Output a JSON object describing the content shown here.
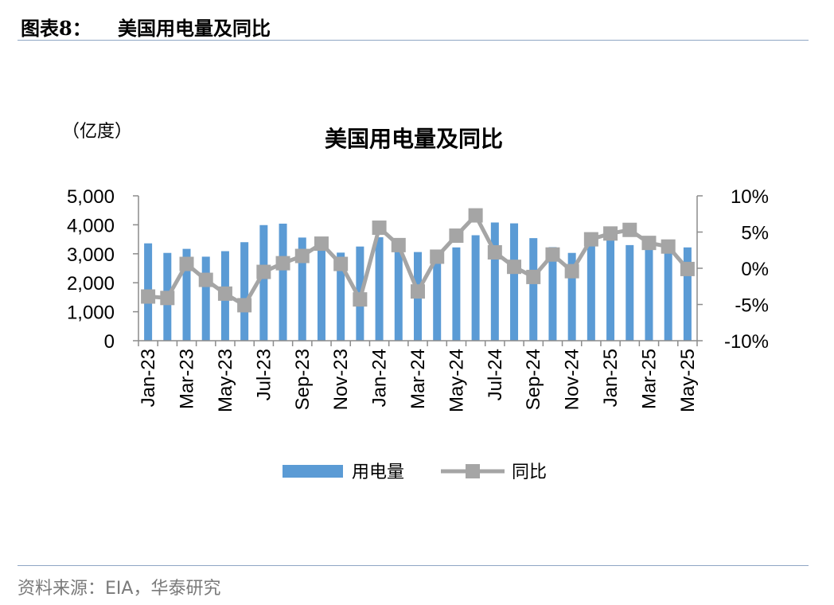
{
  "figure": {
    "label": "图表8：",
    "title": "美国用电量及同比",
    "source": "资料来源：EIA，华泰研究"
  },
  "chart_data": {
    "type": "bar+line",
    "title": "美国用电量及同比",
    "unit_label": "（亿度）",
    "categories": [
      "Jan-23",
      "Feb-23",
      "Mar-23",
      "Apr-23",
      "May-23",
      "Jun-23",
      "Jul-23",
      "Aug-23",
      "Sep-23",
      "Oct-23",
      "Nov-23",
      "Dec-23",
      "Jan-24",
      "Feb-24",
      "Mar-24",
      "Apr-24",
      "May-24",
      "Jun-24",
      "Jul-24",
      "Aug-24",
      "Sep-24",
      "Oct-24",
      "Nov-24",
      "Dec-24",
      "Jan-25",
      "Feb-25",
      "Mar-25",
      "Apr-25",
      "May-25"
    ],
    "x_tick_labels": [
      "Jan-23",
      "Mar-23",
      "May-23",
      "Jul-23",
      "Sep-23",
      "Nov-23",
      "Jan-24",
      "Mar-24",
      "May-24",
      "Jul-24",
      "Sep-24",
      "Nov-24",
      "Jan-25",
      "Mar-25",
      "May-25"
    ],
    "series": [
      {
        "name": "用电量",
        "type": "bar",
        "axis": "left",
        "color": "#5b9bd5",
        "values": [
          3360,
          3030,
          3170,
          2900,
          3090,
          3400,
          3990,
          4040,
          3560,
          3260,
          3040,
          3250,
          3570,
          3180,
          3060,
          2920,
          3220,
          3640,
          4080,
          4050,
          3540,
          3230,
          3030,
          3380,
          3760,
          3300,
          3150,
          3010,
          3220
        ]
      },
      {
        "name": "同比",
        "type": "line",
        "axis": "right",
        "color": "#a5a5a5",
        "values": [
          -3.9,
          -4.1,
          0.6,
          -1.6,
          -3.5,
          -5.1,
          -0.5,
          0.7,
          1.7,
          3.4,
          0.6,
          -4.3,
          5.6,
          3.2,
          -3.2,
          1.6,
          4.5,
          7.3,
          2.2,
          0.2,
          -1.2,
          1.9,
          -0.4,
          4.0,
          4.8,
          5.3,
          3.5,
          3.0,
          -0.1
        ]
      }
    ],
    "y_left": {
      "min": 0,
      "max": 5000,
      "ticks": [
        "0",
        "1,000",
        "2,000",
        "3,000",
        "4,000",
        "5,000"
      ]
    },
    "y_right": {
      "min": -10,
      "max": 10,
      "ticks": [
        "-10%",
        "-5%",
        "0%",
        "5%",
        "10%"
      ]
    },
    "legend_position": "bottom",
    "grid": false
  }
}
